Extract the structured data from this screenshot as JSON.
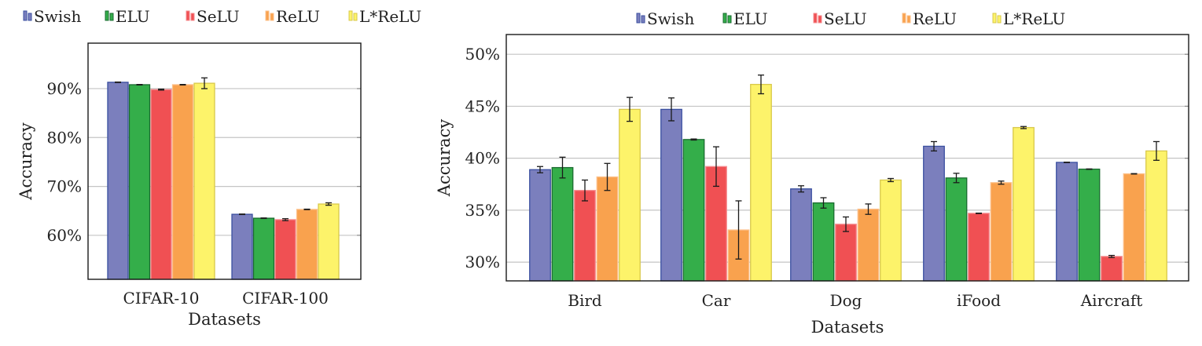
{
  "chart_data": [
    {
      "type": "bar",
      "title": "",
      "xlabel": "Datasets",
      "ylabel": "Accuracy",
      "ylim": [
        51,
        99.3
      ],
      "yticks": [
        60,
        70,
        80,
        90
      ],
      "ytick_labels": [
        "60%",
        "70%",
        "80%",
        "90%"
      ],
      "grid": true,
      "legend_position": "top",
      "categories": [
        "CIFAR-10",
        "CIFAR-100"
      ],
      "series": [
        {
          "name": "Swish",
          "color": "#7b7fbd",
          "edge": "#3a4fa0",
          "values": [
            91.3,
            64.3
          ],
          "errors": [
            0.05,
            0.05
          ]
        },
        {
          "name": "ELU",
          "color": "#34ae4a",
          "edge": "#1a6b30",
          "values": [
            90.8,
            63.5
          ],
          "errors": [
            0.05,
            0.05
          ]
        },
        {
          "name": "SeLU",
          "color": "#f05053",
          "edge": "#f58a8d",
          "values": [
            89.8,
            63.2
          ],
          "errors": [
            0.1,
            0.2
          ]
        },
        {
          "name": "ReLU",
          "color": "#f9a24e",
          "edge": "#fcc08a",
          "values": [
            90.8,
            65.3
          ],
          "errors": [
            0.05,
            0.05
          ]
        },
        {
          "name": "L*ReLU",
          "color": "#fdf36a",
          "edge": "#d8c84a",
          "values": [
            91.1,
            66.4
          ],
          "errors": [
            1.1,
            0.25
          ]
        }
      ]
    },
    {
      "type": "bar",
      "title": "",
      "xlabel": "Datasets",
      "ylabel": "Accuracy",
      "ylim": [
        28.2,
        51.9
      ],
      "yticks": [
        30,
        35,
        40,
        45,
        50
      ],
      "ytick_labels": [
        "30%",
        "35%",
        "40%",
        "45%",
        "50%"
      ],
      "grid": true,
      "legend_position": "top",
      "categories": [
        "Bird",
        "Car",
        "Dog",
        "iFood",
        "Aircraft"
      ],
      "series": [
        {
          "name": "Swish",
          "color": "#7b7fbd",
          "edge": "#3a4fa0",
          "values": [
            38.9,
            44.7,
            37.05,
            41.15,
            39.6
          ],
          "errors": [
            0.3,
            1.1,
            0.3,
            0.45,
            0.02
          ]
        },
        {
          "name": "ELU",
          "color": "#34ae4a",
          "edge": "#1a6b30",
          "values": [
            39.1,
            41.8,
            35.7,
            38.1,
            38.95
          ],
          "errors": [
            1.0,
            0.05,
            0.5,
            0.45,
            0.02
          ]
        },
        {
          "name": "SeLU",
          "color": "#f05053",
          "edge": "#f58a8d",
          "values": [
            36.9,
            39.2,
            33.65,
            34.7,
            30.55
          ],
          "errors": [
            1.0,
            1.9,
            0.7,
            0.02,
            0.1
          ]
        },
        {
          "name": "ReLU",
          "color": "#f9a24e",
          "edge": "#fcc08a",
          "values": [
            38.2,
            33.1,
            35.1,
            37.65,
            38.5
          ],
          "errors": [
            1.3,
            2.8,
            0.5,
            0.15,
            0.02
          ]
        },
        {
          "name": "L*ReLU",
          "color": "#fdf36a",
          "edge": "#d8c84a",
          "values": [
            44.7,
            47.1,
            37.9,
            42.95,
            40.7
          ],
          "errors": [
            1.15,
            0.9,
            0.15,
            0.1,
            0.9
          ]
        }
      ]
    }
  ]
}
